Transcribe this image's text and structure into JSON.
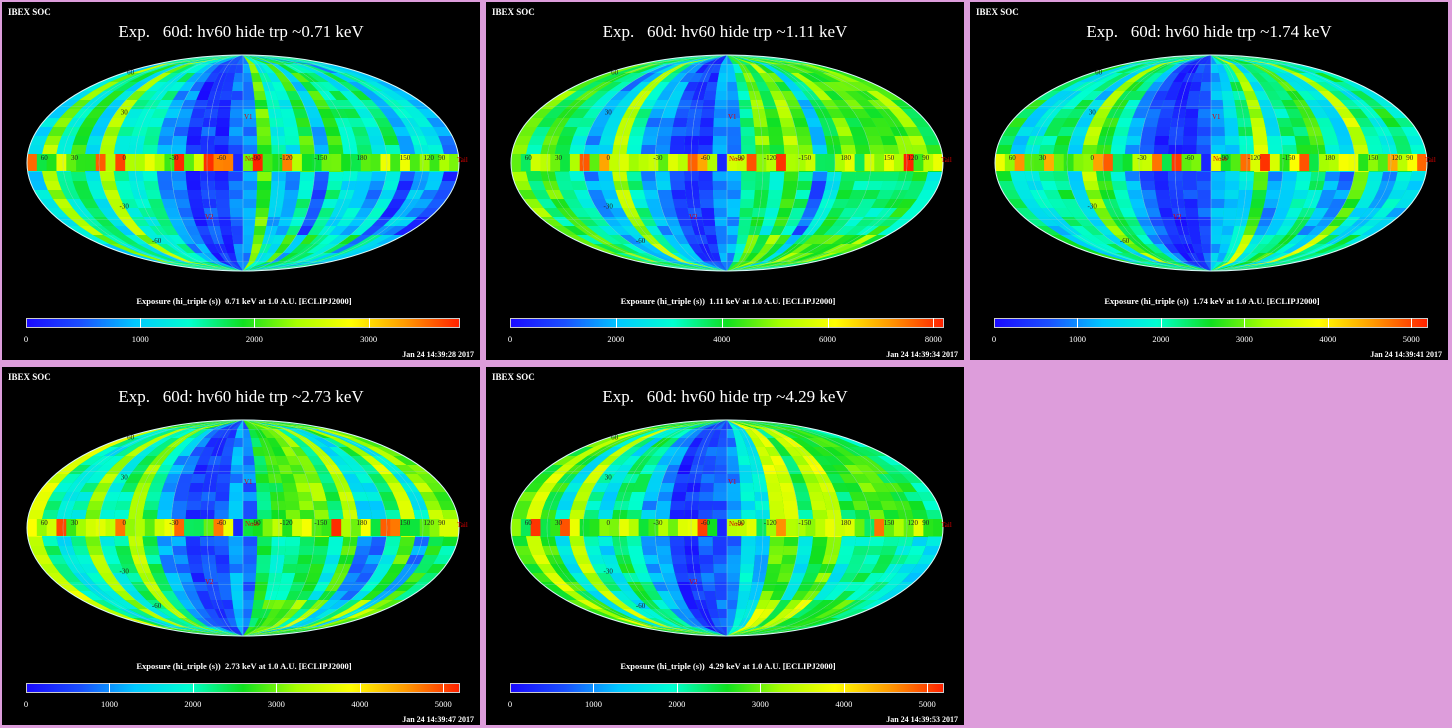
{
  "panels": [
    {
      "header": "IBEX SOC",
      "title": "Exp.   60d: hv60 hide trp ~0.71 keV",
      "caption": "Exposure (hi_triple (s))  0.71 keV at 1.0 A.U. [ECLIPJ2000]",
      "ticks": [
        "0",
        "1000",
        "2000",
        "3000"
      ],
      "tick_values": [
        0,
        1000,
        2000,
        3000
      ],
      "scale_max": 3800,
      "timestamp": "Jan 24 14:39:28 2017",
      "seed": 3,
      "hot_band": 1.0,
      "base_level": 0.42
    },
    {
      "header": "IBEX SOC",
      "title": "Exp.   60d: hv60 hide trp ~1.11 keV",
      "caption": "Exposure (hi_triple (s))  1.11 keV at 1.0 A.U. [ECLIPJ2000]",
      "ticks": [
        "0",
        "2000",
        "4000",
        "6000",
        "8000"
      ],
      "tick_values": [
        0,
        2000,
        4000,
        6000,
        8000
      ],
      "scale_max": 8200,
      "timestamp": "Jan 24 14:39:34 2017",
      "seed": 5,
      "hot_band": 1.0,
      "base_level": 0.42
    },
    {
      "header": "IBEX SOC",
      "title": "Exp.   60d: hv60 hide trp ~1.74 keV",
      "caption": "Exposure (hi_triple (s))  1.74 keV at 1.0 A.U. [ECLIPJ2000]",
      "ticks": [
        "0",
        "1000",
        "2000",
        "3000",
        "4000",
        "5000"
      ],
      "tick_values": [
        0,
        1000,
        2000,
        3000,
        4000,
        5000
      ],
      "scale_max": 5200,
      "timestamp": "Jan 24 14:39:41 2017",
      "seed": 7,
      "hot_band": 1.0,
      "base_level": 0.45
    },
    {
      "header": "IBEX SOC",
      "title": "Exp.   60d: hv60 hide trp ~2.73 keV",
      "caption": "Exposure (hi_triple (s))  2.73 keV at 1.0 A.U. [ECLIPJ2000]",
      "ticks": [
        "0",
        "1000",
        "2000",
        "3000",
        "4000",
        "5000"
      ],
      "tick_values": [
        0,
        1000,
        2000,
        3000,
        4000,
        5000
      ],
      "scale_max": 5200,
      "timestamp": "Jan 24 14:39:47 2017",
      "seed": 11,
      "hot_band": 1.0,
      "base_level": 0.5
    },
    {
      "header": "IBEX SOC",
      "title": "Exp.   60d: hv60 hide trp ~4.29 keV",
      "caption": "Exposure (hi_triple (s))  4.29 keV at 1.0 A.U. [ECLIPJ2000]",
      "ticks": [
        "0",
        "1000",
        "2000",
        "3000",
        "4000",
        "5000"
      ],
      "tick_values": [
        0,
        1000,
        2000,
        3000,
        4000,
        5000
      ],
      "scale_max": 5200,
      "timestamp": "Jan 24 14:39:53 2017",
      "seed": 13,
      "hot_band": 1.0,
      "base_level": 0.5
    }
  ],
  "map_labels": {
    "lon": [
      "60",
      "30",
      "0",
      "-30",
      "-60",
      "-90",
      "-120",
      "-150",
      "180",
      "150",
      "120",
      "90"
    ],
    "lat": [
      "60",
      "30",
      "-30",
      "-60"
    ],
    "nose": "Nose",
    "tail": "Tail",
    "v1": "V1",
    "v2": "V2"
  },
  "colors": {
    "background": "#dd9ddb",
    "panel": "#000000",
    "colormap": [
      "#1a0aff",
      "#1a50ff",
      "#00c8ff",
      "#00ffd0",
      "#10e020",
      "#a8ff00",
      "#ffff00",
      "#ff9a00",
      "#ff2200"
    ]
  }
}
